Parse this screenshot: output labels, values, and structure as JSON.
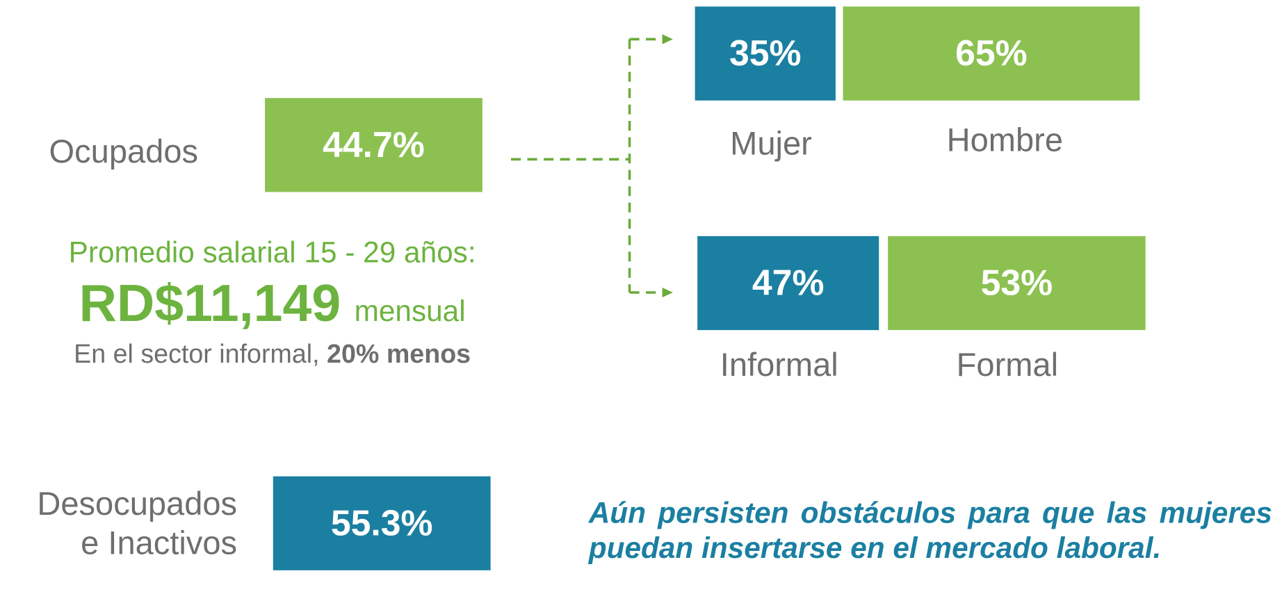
{
  "ocupados": {
    "label": "Ocupados",
    "value": "44.7%"
  },
  "sexo": [
    {
      "label": "Mujer",
      "value": "35%"
    },
    {
      "label": "Hombre",
      "value": "65%"
    }
  ],
  "sector": [
    {
      "label": "Informal",
      "value": "47%"
    },
    {
      "label": "Formal",
      "value": "53%"
    }
  ],
  "salario": {
    "title": "Promedio salarial 15 - 29 años:",
    "amount": "RD$11,149",
    "unit": "mensual",
    "note": "En el sector informal, ",
    "note_bold": "20% menos"
  },
  "desocupados": {
    "label_line1": "Desocupados",
    "label_line2": "e Inactivos",
    "value": "55.3%"
  },
  "message": "Aún persisten obstáculos para que las mujeres puedan insertarse en el mercado laboral."
}
